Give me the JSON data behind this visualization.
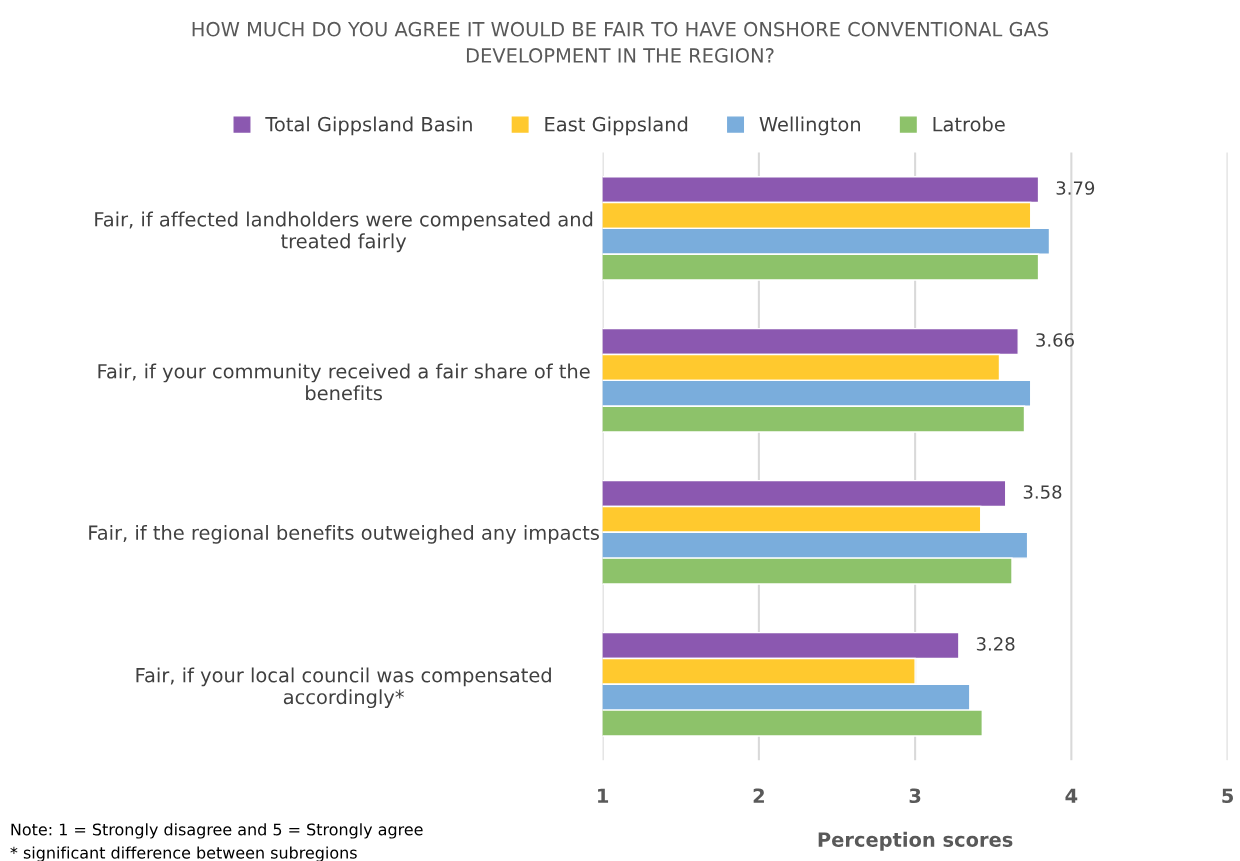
{
  "chart_data": {
    "type": "bar",
    "orientation": "horizontal",
    "title": "HOW MUCH DO YOU AGREE IT WOULD BE FAIR TO HAVE ONSHORE CONVENTIONAL GAS\nDEVELOPMENT IN THE REGION?",
    "categories": [
      "Fair, if affected landholders were compensated and\ntreated fairly",
      "Fair, if your community received a fair share of the\nbenefits",
      "Fair, if the regional benefits outweighed any impacts",
      "Fair, if your local council was compensated\naccordingly*"
    ],
    "series": [
      {
        "name": "Total Gippsland Basin",
        "color": "#8b58b0",
        "values": [
          3.79,
          3.66,
          3.58,
          3.28
        ],
        "value_labels": [
          "3.79",
          "3.66",
          "3.58",
          "3.28"
        ]
      },
      {
        "name": "East Gippsland",
        "color": "#ffc92e",
        "values": [
          3.74,
          3.54,
          3.42,
          3.0
        ]
      },
      {
        "name": "Wellington",
        "color": "#7aaddc",
        "values": [
          3.86,
          3.74,
          3.72,
          3.35
        ]
      },
      {
        "name": "Latrobe",
        "color": "#8dc26a",
        "values": [
          3.79,
          3.7,
          3.62,
          3.43
        ]
      }
    ],
    "xlim": [
      1,
      5
    ],
    "xticks": [
      1,
      2,
      3,
      4,
      5
    ],
    "xlabel": "Perception scores",
    "grid": "x",
    "legend": "top",
    "annotations": [
      "Note: 1 = Strongly disagree and 5 = Strongly agree",
      "* significant difference between subregions"
    ]
  }
}
